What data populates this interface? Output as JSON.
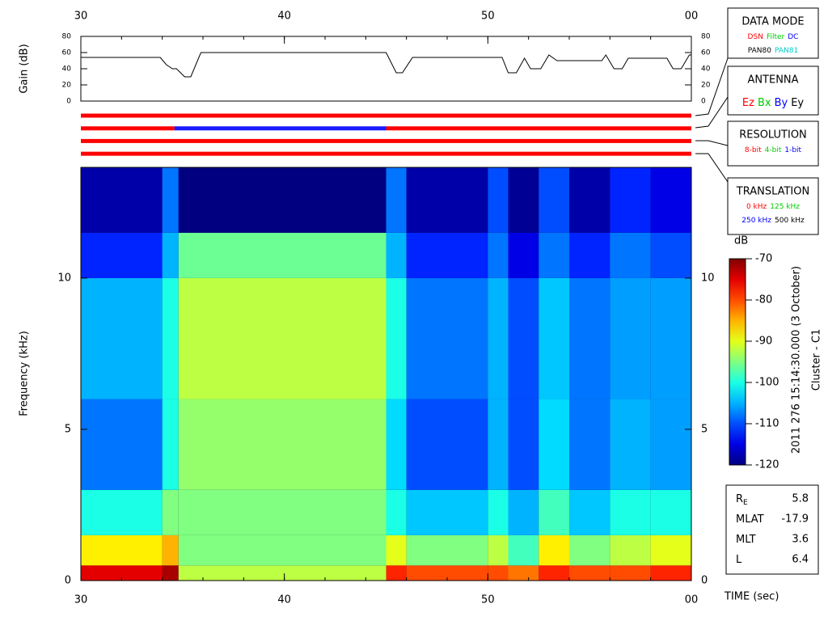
{
  "chart_data": [
    {
      "type": "line",
      "y_label": "Gain (dB)",
      "xlim": [
        30,
        60
      ],
      "xticks": [
        30,
        40,
        50,
        {
          "value": 60,
          "label": "00"
        }
      ],
      "ylim": [
        0,
        80
      ],
      "yticks": [
        0,
        20,
        40,
        60,
        80
      ],
      "x": [
        30,
        33.9,
        34.2,
        34.5,
        34.7,
        35.1,
        35.4,
        35.9,
        45.0,
        45.5,
        45.8,
        46.3,
        50.7,
        51.0,
        51.4,
        51.8,
        52.1,
        52.6,
        53.0,
        53.4,
        55.6,
        55.8,
        56.2,
        56.6,
        56.9,
        58.8,
        59.1,
        59.5,
        59.9,
        60
      ],
      "series": [
        {
          "color": "#000000",
          "values": [
            54,
            54,
            45,
            40,
            40,
            30,
            30,
            60,
            60,
            35,
            35,
            54,
            54,
            35,
            35,
            53,
            40,
            40,
            57,
            50,
            50,
            57,
            40,
            40,
            53,
            53,
            40,
            40,
            57,
            57
          ]
        }
      ]
    },
    {
      "type": "status",
      "rows": [
        [
          {
            "start": 30,
            "end": 60,
            "color": "#ff0000"
          }
        ],
        [
          {
            "start": 30,
            "end": 34.6,
            "color": "#ff0000"
          },
          {
            "start": 34.6,
            "end": 45.0,
            "color": "#1a1aff"
          },
          {
            "start": 45.0,
            "end": 60,
            "color": "#ff0000"
          }
        ],
        [
          {
            "start": 30,
            "end": 60,
            "color": "#ff0000"
          }
        ],
        [
          {
            "start": 30,
            "end": 60,
            "color": "#ff0000"
          }
        ]
      ]
    },
    {
      "type": "heatmap",
      "y_label": "Frequency (kHz)",
      "x_label": "TIME (sec)",
      "xlim": [
        30,
        60
      ],
      "xticks": [
        30,
        40,
        50,
        {
          "value": 60,
          "label": "00"
        }
      ],
      "ylim": [
        0,
        13.66
      ],
      "yticks": [
        0,
        5,
        10
      ],
      "x_edges": [
        30,
        34,
        34.8,
        45,
        46,
        50,
        51,
        52.5,
        54,
        56,
        58,
        60
      ],
      "y_edges": [
        0,
        0.5,
        1.5,
        3,
        6,
        10,
        11.5,
        13.66
      ],
      "values": [
        [
          -75,
          -88,
          -100,
          -108,
          -105,
          -112,
          -118
        ],
        [
          -72,
          -85,
          -95,
          -100,
          -100,
          -105,
          -108
        ],
        [
          -92,
          -95,
          -95,
          -94,
          -92,
          -96,
          -120
        ],
        [
          -78,
          -90,
          -100,
          -103,
          -100,
          -105,
          -108
        ],
        [
          -80,
          -95,
          -104,
          -110,
          -108,
          -112,
          -118
        ],
        [
          -80,
          -92,
          -100,
          -105,
          -105,
          -108,
          -110
        ],
        [
          -82,
          -98,
          -105,
          -110,
          -110,
          -115,
          -119
        ],
        [
          -78,
          -88,
          -98,
          -103,
          -104,
          -108,
          -110
        ],
        [
          -80,
          -95,
          -104,
          -108,
          -108,
          -112,
          -118
        ],
        [
          -80,
          -92,
          -100,
          -105,
          -106,
          -108,
          -112
        ],
        [
          -78,
          -90,
          -100,
          -106,
          -106,
          -110,
          -115
        ]
      ],
      "colormap": "jet",
      "colorbar": {
        "label": "dB",
        "lim": [
          -120,
          -70
        ],
        "ticks": [
          -120,
          -110,
          -100,
          -90,
          -80,
          -70
        ]
      },
      "annotations": [
        "2011 276 15:14:30.000 (3 October)",
        "Cluster - C1"
      ]
    }
  ],
  "boxes": [
    {
      "title": "DATA MODE",
      "lines": [
        [
          {
            "text": "DSN",
            "color": "#ff0000"
          },
          {
            "text": "Filter",
            "color": "#00cc00"
          },
          {
            "text": "DC",
            "color": "#0000ff"
          }
        ],
        [
          {
            "text": "PAN80",
            "color": "#000000"
          },
          {
            "text": "PAN81",
            "color": "#00cccc"
          }
        ]
      ]
    },
    {
      "title": "ANTENNA",
      "lines": [
        [
          {
            "text": "Ez",
            "color": "#ff0000"
          },
          {
            "text": "Bx",
            "color": "#00cc00"
          },
          {
            "text": "By",
            "color": "#0000ff"
          },
          {
            "text": "Ey",
            "color": "#000000"
          }
        ]
      ]
    },
    {
      "title": "RESOLUTION",
      "lines": [
        [
          {
            "text": "8-bit",
            "color": "#ff0000"
          },
          {
            "text": "4-bit",
            "color": "#00cc00"
          },
          {
            "text": "1-bit",
            "color": "#0000ff"
          }
        ]
      ]
    },
    {
      "title": "TRANSLATION",
      "lines": [
        [
          {
            "text": "0 kHz",
            "color": "#ff0000"
          },
          {
            "text": "125 kHz",
            "color": "#00cc00"
          }
        ],
        [
          {
            "text": "250 kHz",
            "color": "#0000ff"
          },
          {
            "text": "500 kHz",
            "color": "#000000"
          }
        ]
      ]
    }
  ],
  "info": [
    {
      "label": "R",
      "sub": "E",
      "value": "5.8"
    },
    {
      "label": "MLAT",
      "value": "-17.9"
    },
    {
      "label": "MLT",
      "value": "3.6"
    },
    {
      "label": "L",
      "value": "6.4"
    }
  ]
}
